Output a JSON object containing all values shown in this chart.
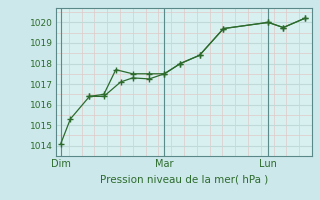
{
  "xlabel": "Pression niveau de la mer( hPa )",
  "background_color": "#cce8ea",
  "plot_bg_color": "#d8f0f0",
  "grid_major_color": "#c0dada",
  "grid_minor_color": "#e0c8c8",
  "line_color": "#2d6b2d",
  "ylim": [
    1013.5,
    1020.7
  ],
  "xlim": [
    -0.2,
    10.5
  ],
  "day_labels": [
    "Dim",
    "Mar",
    "Lun"
  ],
  "day_positions": [
    0.0,
    4.33,
    8.67
  ],
  "yticks": [
    1014,
    1015,
    1016,
    1017,
    1018,
    1019,
    1020
  ],
  "series1_x": [
    0.0,
    0.4,
    1.2,
    1.8,
    2.3,
    3.0,
    3.7,
    4.33,
    5.0,
    5.8,
    6.8,
    8.67,
    9.3,
    10.2
  ],
  "series1_y": [
    1014.1,
    1015.3,
    1016.4,
    1016.5,
    1017.7,
    1017.5,
    1017.5,
    1017.5,
    1018.0,
    1018.4,
    1019.7,
    1020.0,
    1019.75,
    1020.2
  ],
  "series2_x": [
    1.2,
    1.8,
    2.5,
    3.0,
    3.7,
    4.33,
    5.0,
    5.8,
    6.8,
    8.67,
    9.3,
    10.2
  ],
  "series2_y": [
    1016.4,
    1016.4,
    1017.1,
    1017.3,
    1017.25,
    1017.5,
    1018.0,
    1018.4,
    1019.7,
    1020.0,
    1019.75,
    1020.2
  ]
}
